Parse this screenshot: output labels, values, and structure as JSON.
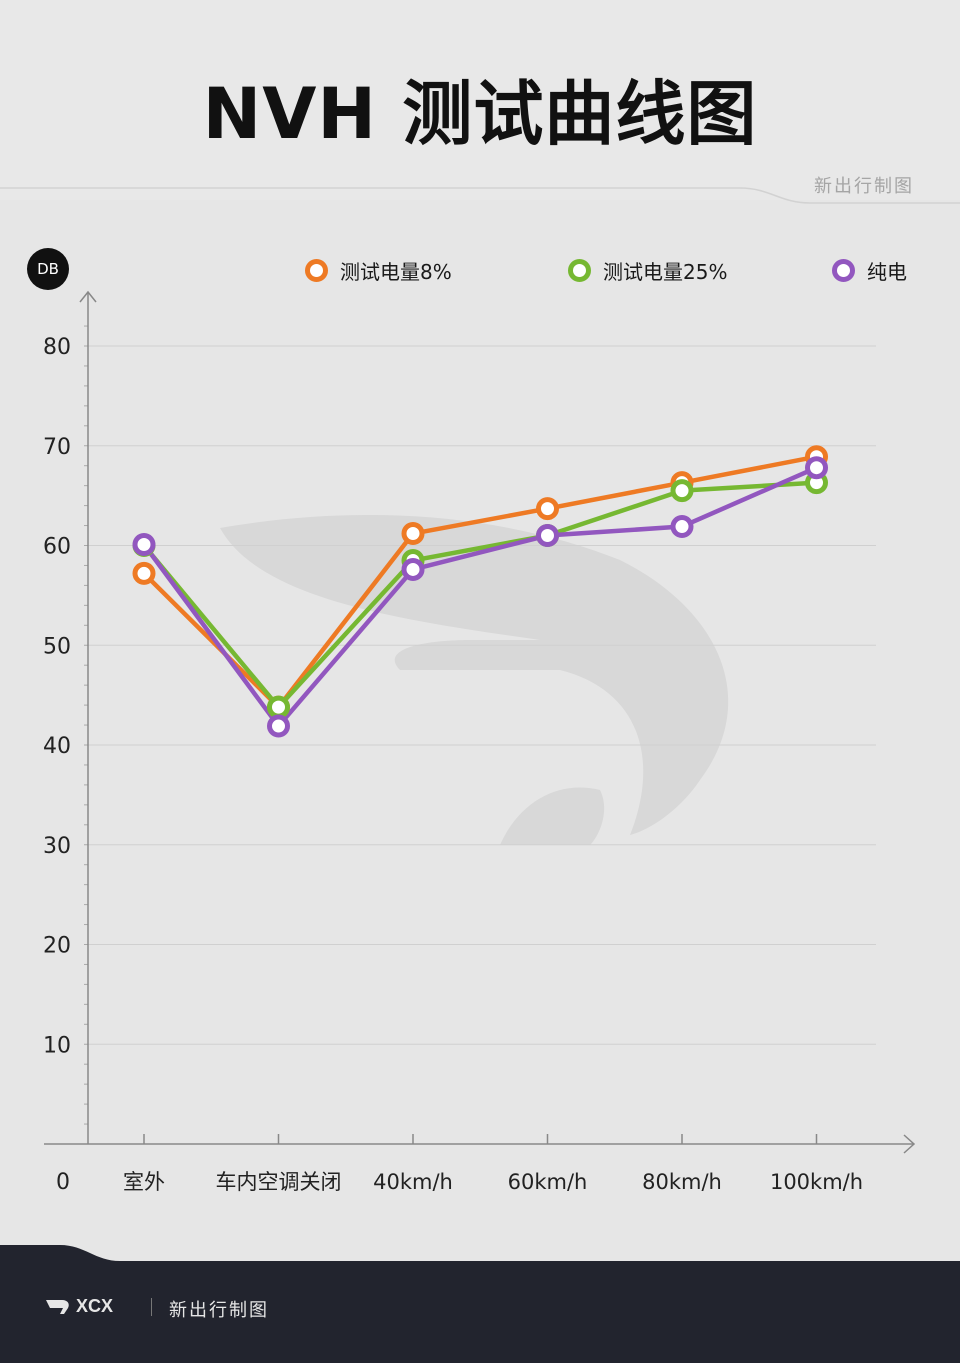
{
  "header": {
    "title": "NVH 测试曲线图",
    "brand": "新出行制图"
  },
  "footer": {
    "logo_text": "XCX",
    "brand": "新出行制图"
  },
  "colors": {
    "orange": "#ee7a24",
    "green": "#76b832",
    "purple": "#9257bf",
    "background": "#e6e6e6",
    "footer": "#22242e"
  },
  "chart_data": {
    "type": "line",
    "unit": "DB",
    "origin_label": "0",
    "categories": [
      "室外",
      "车内空调关闭",
      "40km/h",
      "60km/h",
      "80km/h",
      "100km/h"
    ],
    "yticks": [
      10,
      20,
      30,
      40,
      50,
      60,
      70,
      80
    ],
    "ylim": [
      0,
      80
    ],
    "grid": true,
    "legend_position": "top",
    "series": [
      {
        "name": "测试电量8%",
        "color": "#ee7a24",
        "values": [
          57.2,
          43.8,
          61.2,
          63.7,
          66.3,
          68.9
        ]
      },
      {
        "name": "测试电量25%",
        "color": "#76b832",
        "values": [
          60.0,
          43.8,
          58.5,
          61.0,
          65.5,
          66.3
        ]
      },
      {
        "name": "纯电",
        "color": "#9257bf",
        "values": [
          60.1,
          41.9,
          57.6,
          61.0,
          61.9,
          67.8
        ]
      }
    ]
  }
}
